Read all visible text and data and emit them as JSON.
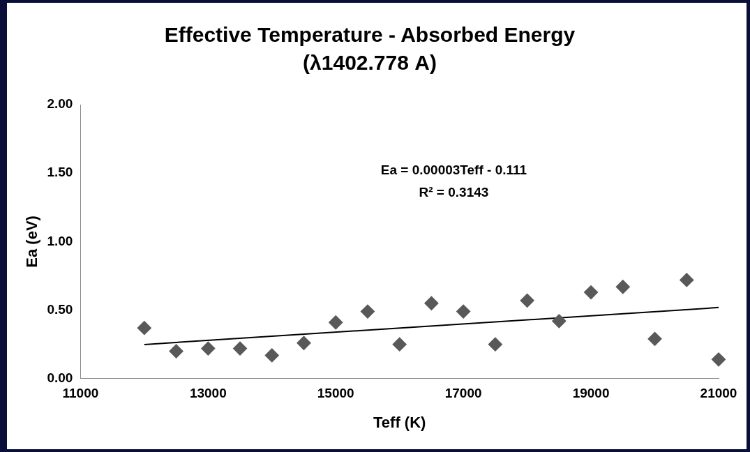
{
  "chart_data": {
    "type": "scatter",
    "title": "Effective Temperature - Absorbed Energy",
    "subtitle": "(λ1402.778 A)",
    "xlabel": "Teff (K)",
    "ylabel": "Ea (eV)",
    "x": [
      12000,
      12500,
      13000,
      13500,
      14000,
      14500,
      15000,
      15500,
      16000,
      16500,
      17000,
      17500,
      18000,
      18500,
      19000,
      19500,
      20000,
      20500,
      21000
    ],
    "series": [
      {
        "color": "#595959",
        "marker": "diamond",
        "values": [
          0.37,
          0.2,
          0.22,
          0.22,
          0.17,
          0.26,
          0.41,
          0.49,
          0.25,
          0.55,
          0.49,
          0.25,
          0.57,
          0.42,
          0.63,
          0.67,
          0.29,
          0.72,
          0.14
        ]
      },
      {
        "type": "line",
        "color": "#000000",
        "marker": "none",
        "x": [
          12000,
          21000
        ],
        "values": [
          0.249,
          0.519
        ]
      }
    ],
    "annotations": [
      "Ea = 0.00003Teff - 0.111",
      "R² = 0.3143"
    ],
    "xlim": [
      11000,
      21000
    ],
    "xticks": [
      11000,
      13000,
      15000,
      17000,
      19000,
      21000
    ],
    "ylim": [
      0,
      2
    ],
    "yticks": [
      {
        "value": 0,
        "label": "0.00"
      },
      {
        "value": 0.5,
        "label": "0.50"
      },
      {
        "value": 1,
        "label": "1.00"
      },
      {
        "value": 1.5,
        "label": "1.50"
      },
      {
        "value": 2,
        "label": "2.00"
      }
    ],
    "grid": false,
    "legend": false
  }
}
